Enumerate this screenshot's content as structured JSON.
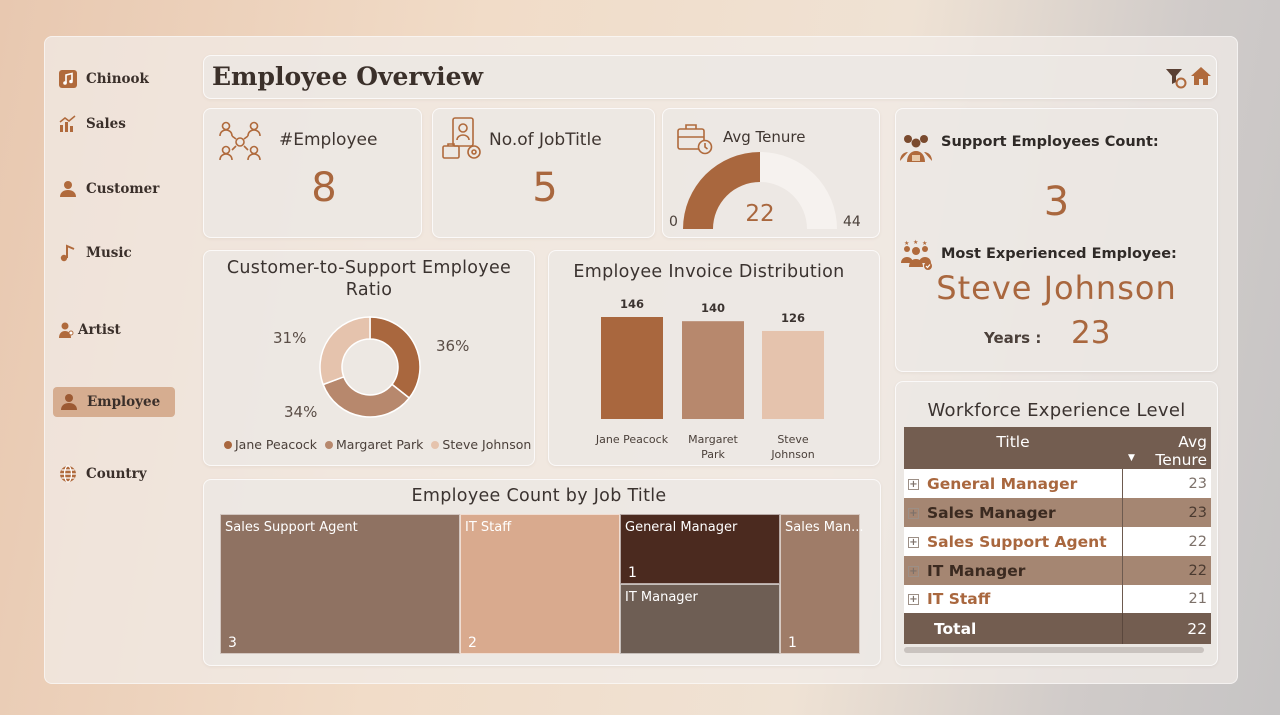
{
  "nav": {
    "items": [
      {
        "label": "Chinook",
        "icon": "music-note-square-icon"
      },
      {
        "label": "Sales",
        "icon": "bar-chart-icon"
      },
      {
        "label": "Customer",
        "icon": "person-icon"
      },
      {
        "label": "Music",
        "icon": "music-note-icon"
      },
      {
        "label": "Artist",
        "icon": "artist-icon"
      },
      {
        "label": "Employee",
        "icon": "person-icon"
      },
      {
        "label": "Country",
        "icon": "globe-icon"
      }
    ],
    "active": "Employee"
  },
  "header": {
    "title": "Employee Overview"
  },
  "kpis": {
    "employee": {
      "label": "#Employee",
      "value": "8"
    },
    "job_title": {
      "label": "No.of JobTitle",
      "value": "5"
    },
    "avg_tenure": {
      "label": "Avg Tenure",
      "value": "22",
      "min": "0",
      "max": "44"
    }
  },
  "support": {
    "count_label": "Support Employees Count:",
    "count_value": "3",
    "most_exp_label": "Most Experienced Employee:",
    "most_exp_name": "Steve Johnson",
    "years_label": "Years :",
    "years_value": "23"
  },
  "colors": {
    "dark": "#a9673e",
    "mid": "#b7886d",
    "light": "#e5c3ad",
    "table_header": "#735d50"
  },
  "chart_data": [
    {
      "type": "pie",
      "title": "Customer-to-Support Employee Ratio",
      "categories": [
        "Jane Peacock",
        "Margaret Park",
        "Steve Johnson"
      ],
      "values": [
        36,
        34,
        31
      ],
      "labels": [
        "36%",
        "34%",
        "31%"
      ],
      "colors": [
        "#a9673e",
        "#b7886d",
        "#e5c3ad"
      ],
      "legend": "bottom"
    },
    {
      "type": "bar",
      "title": "Employee Invoice Distribution",
      "categories": [
        "Jane Peacock",
        "Margaret Park",
        "Steve Johnson"
      ],
      "values": [
        146,
        140,
        126
      ],
      "colors": [
        "#a9673e",
        "#b7886d",
        "#e5c3ad"
      ]
    },
    {
      "type": "treemap",
      "title": "Employee Count by Job Title",
      "categories": [
        "Sales Support Agent",
        "IT Staff",
        "General Manager",
        "IT Manager",
        "Sales Manager"
      ],
      "display_labels": [
        "Sales Support Agent",
        "IT Staff",
        "General Manager",
        "IT Manager",
        "Sales Man..."
      ],
      "values": [
        3,
        2,
        1,
        1,
        1
      ],
      "value_labels": [
        "3",
        "2",
        "1",
        "",
        "1"
      ],
      "colors": [
        "#8f7262",
        "#d9aa8e",
        "#4b2a1f",
        "#6e5e54",
        "#9f7c68"
      ]
    },
    {
      "type": "table",
      "title": "Workforce Experience Level",
      "columns": [
        "Title",
        "Avg Tenure"
      ],
      "rows": [
        {
          "title": "General Manager",
          "avg_tenure": 23
        },
        {
          "title": "Sales Manager",
          "avg_tenure": 23
        },
        {
          "title": "Sales Support Agent",
          "avg_tenure": 22
        },
        {
          "title": "IT Manager",
          "avg_tenure": 22
        },
        {
          "title": "IT Staff",
          "avg_tenure": 21
        }
      ],
      "total": {
        "label": "Total",
        "value": 22
      }
    }
  ]
}
